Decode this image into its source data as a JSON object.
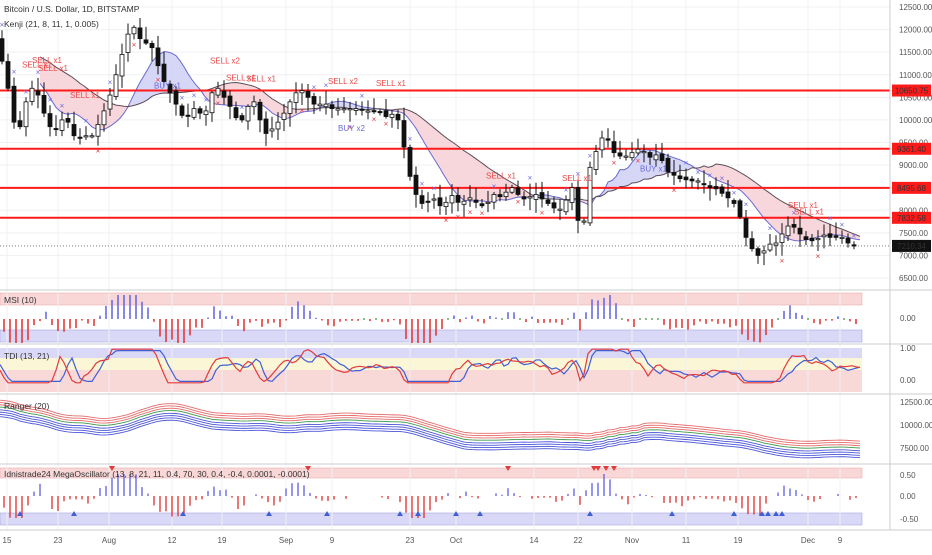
{
  "chart_data": {
    "type": "candlestick",
    "symbol_title": "Bitcoin / U.S. Dollar, 1D, BITSTAMP",
    "indicator_line": "Kenji (21, 8, 11, 1, 0.005)",
    "price_axis": {
      "ticks": [
        12500,
        12000,
        11500,
        11000,
        10500,
        10000,
        9500,
        9000,
        8500,
        8000,
        7500,
        7000,
        6500
      ],
      "range": [
        6200,
        12650
      ]
    },
    "current_price": "7210.34",
    "levels": [
      {
        "value": 10650.75,
        "label": "10650.75"
      },
      {
        "value": 9361.4,
        "label": "9361.40"
      },
      {
        "value": 8495.68,
        "label": "8495.68"
      },
      {
        "value": 7832.58,
        "label": "7832.58"
      }
    ],
    "x_axis_labels": [
      "15",
      "23",
      "Aug",
      "12",
      "19",
      "Sep",
      "9",
      "23",
      "Oct",
      "14",
      "22",
      "Nov",
      "11",
      "19",
      "Dec",
      "9"
    ],
    "close_path": [
      [
        0,
        11800
      ],
      [
        8,
        11000
      ],
      [
        14,
        10400
      ],
      [
        20,
        9500
      ],
      [
        26,
        10200
      ],
      [
        32,
        10600
      ],
      [
        38,
        10800
      ],
      [
        44,
        10300
      ],
      [
        50,
        10000
      ],
      [
        56,
        9700
      ],
      [
        62,
        9900
      ],
      [
        68,
        10100
      ],
      [
        74,
        9800
      ],
      [
        80,
        9500
      ],
      [
        86,
        9700
      ],
      [
        92,
        9600
      ],
      [
        98,
        9700
      ],
      [
        104,
        10100
      ],
      [
        110,
        10300
      ],
      [
        116,
        10800
      ],
      [
        122,
        11200
      ],
      [
        128,
        11700
      ],
      [
        134,
        12100
      ],
      [
        140,
        12000
      ],
      [
        146,
        11600
      ],
      [
        152,
        11800
      ],
      [
        158,
        11400
      ],
      [
        164,
        11000
      ],
      [
        170,
        10700
      ],
      [
        176,
        10500
      ],
      [
        182,
        10200
      ],
      [
        188,
        10000
      ],
      [
        194,
        10200
      ],
      [
        200,
        10300
      ],
      [
        206,
        10000
      ],
      [
        212,
        10400
      ],
      [
        218,
        10800
      ],
      [
        224,
        10600
      ],
      [
        230,
        10400
      ],
      [
        236,
        10200
      ],
      [
        242,
        9900
      ],
      [
        248,
        10100
      ],
      [
        254,
        10500
      ],
      [
        260,
        10300
      ],
      [
        266,
        9700
      ],
      [
        272,
        9700
      ],
      [
        278,
        9900
      ],
      [
        284,
        10000
      ],
      [
        290,
        10300
      ],
      [
        296,
        10500
      ],
      [
        302,
        10700
      ],
      [
        308,
        10600
      ],
      [
        314,
        10400
      ],
      [
        320,
        10300
      ],
      [
        326,
        10400
      ],
      [
        332,
        10300
      ],
      [
        338,
        10200
      ],
      [
        344,
        10300
      ],
      [
        350,
        10200
      ],
      [
        356,
        10300
      ],
      [
        362,
        10200
      ],
      [
        368,
        10250
      ],
      [
        374,
        10150
      ],
      [
        380,
        10250
      ],
      [
        386,
        10100
      ],
      [
        392,
        10050
      ],
      [
        398,
        10200
      ],
      [
        404,
        9800
      ],
      [
        410,
        9000
      ],
      [
        416,
        8500
      ],
      [
        422,
        8200
      ],
      [
        428,
        8100
      ],
      [
        434,
        8300
      ],
      [
        440,
        8200
      ],
      [
        446,
        8000
      ],
      [
        452,
        8350
      ],
      [
        458,
        8300
      ],
      [
        464,
        8050
      ],
      [
        470,
        8350
      ],
      [
        476,
        8200
      ],
      [
        482,
        8150
      ],
      [
        488,
        8050
      ],
      [
        494,
        8300
      ],
      [
        500,
        8400
      ],
      [
        506,
        8200
      ],
      [
        512,
        8600
      ],
      [
        518,
        8400
      ],
      [
        524,
        8300
      ],
      [
        530,
        8200
      ],
      [
        536,
        8400
      ],
      [
        542,
        8300
      ],
      [
        548,
        8200
      ],
      [
        554,
        8100
      ],
      [
        560,
        8000
      ],
      [
        566,
        8050
      ],
      [
        572,
        8400
      ],
      [
        578,
        8600
      ],
      [
        582,
        7500
      ],
      [
        586,
        7450
      ],
      [
        590,
        8700
      ],
      [
        596,
        9200
      ],
      [
        602,
        9400
      ],
      [
        608,
        9800
      ],
      [
        614,
        9300
      ],
      [
        620,
        9250
      ],
      [
        626,
        9150
      ],
      [
        632,
        9250
      ],
      [
        638,
        9300
      ],
      [
        644,
        9400
      ],
      [
        650,
        9200
      ],
      [
        656,
        9150
      ],
      [
        662,
        9300
      ],
      [
        668,
        8900
      ],
      [
        674,
        8800
      ],
      [
        680,
        8750
      ],
      [
        686,
        8650
      ],
      [
        692,
        8700
      ],
      [
        698,
        8600
      ],
      [
        704,
        8700
      ],
      [
        710,
        8450
      ],
      [
        716,
        8550
      ],
      [
        722,
        8400
      ],
      [
        728,
        8350
      ],
      [
        734,
        8200
      ],
      [
        740,
        8100
      ],
      [
        746,
        7600
      ],
      [
        752,
        7200
      ],
      [
        758,
        7100
      ],
      [
        764,
        6900
      ],
      [
        770,
        7300
      ],
      [
        776,
        7200
      ],
      [
        782,
        7350
      ],
      [
        788,
        7600
      ],
      [
        794,
        7700
      ],
      [
        800,
        7550
      ],
      [
        806,
        7400
      ],
      [
        812,
        7300
      ],
      [
        818,
        7350
      ],
      [
        824,
        7400
      ],
      [
        830,
        7500
      ],
      [
        836,
        7300
      ],
      [
        842,
        7500
      ],
      [
        848,
        7300
      ],
      [
        854,
        7250
      ],
      [
        858,
        7210
      ]
    ],
    "buy_labels": [
      {
        "text": "BUY x1",
        "x": 154,
        "y": 10700
      },
      {
        "text": "BUY x2",
        "x": 338,
        "y": 9760
      },
      {
        "text": "BUY x1",
        "x": 640,
        "y": 8860
      }
    ],
    "sell_labels": [
      {
        "text": "SELL x1",
        "x": 32,
        "y": 11260
      },
      {
        "text": "SELL x1",
        "x": 22,
        "y": 11160
      },
      {
        "text": "SELL x1",
        "x": 38,
        "y": 11080
      },
      {
        "text": "SELL x1",
        "x": 70,
        "y": 10480
      },
      {
        "text": "SELL x2",
        "x": 210,
        "y": 11250
      },
      {
        "text": "SELL x1",
        "x": 226,
        "y": 10870
      },
      {
        "text": "SELL x1",
        "x": 246,
        "y": 10850
      },
      {
        "text": "SELL x2",
        "x": 328,
        "y": 10800
      },
      {
        "text": "SELL x1",
        "x": 376,
        "y": 10750
      },
      {
        "text": "SELL x1",
        "x": 486,
        "y": 8700
      },
      {
        "text": "SELL x1",
        "x": 562,
        "y": 8650
      },
      {
        "text": "SELL x1",
        "x": 788,
        "y": 8050
      },
      {
        "text": "SELL x1",
        "x": 794,
        "y": 7910
      }
    ],
    "msi": {
      "label": "MSI (10)",
      "ticks": [
        "0.00"
      ]
    },
    "tdi": {
      "label": "TDI (13, 21)",
      "ticks": [
        "1.00",
        "0.00"
      ]
    },
    "ranger": {
      "label": "Ranger (20)",
      "ticks": [
        "12500.00",
        "10000.00",
        "7500.00"
      ]
    },
    "mega": {
      "label": "Idnistrade24 MegaOscillator (13, 8, 21, 11, 0.4, 70, 30, 0.4, -0.4, 0.0001, -0.0001)",
      "ticks": [
        "0.50",
        "0.00",
        "-0.50"
      ]
    }
  }
}
